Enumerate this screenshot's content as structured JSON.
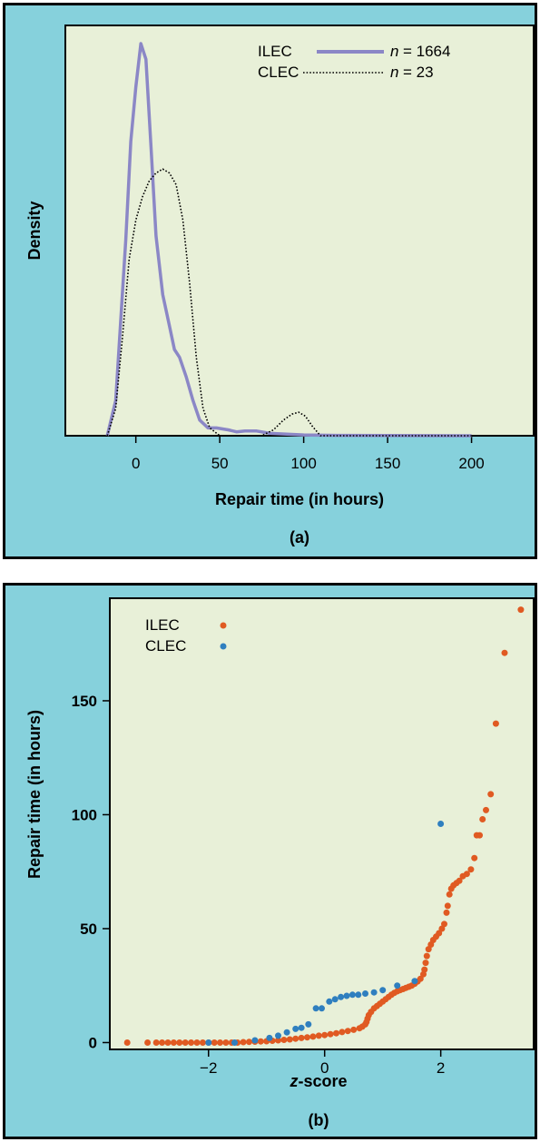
{
  "chart_data": [
    {
      "type": "line",
      "panel_label": "(a)",
      "xlabel": "Repair time (in hours)",
      "ylabel": "Density",
      "xlim": [
        -42,
        237
      ],
      "ylim": [
        0,
        1.0
      ],
      "x_ticks": [
        "0",
        "50",
        "100",
        "150",
        "200"
      ],
      "x_tick_values": [
        0,
        50,
        100,
        150,
        200
      ],
      "y_ticks_shown": false,
      "legend": {
        "position": "top-right",
        "entries": [
          {
            "name": "ILEC",
            "style": "solid",
            "color": "#8b87c6",
            "n_label": "n",
            "n_value": "= 1664"
          },
          {
            "name": "CLEC",
            "style": "dotted",
            "color": "#000000",
            "n_label": "n",
            "n_value": "= 23"
          }
        ]
      },
      "series": [
        {
          "name": "ILEC",
          "style": "solid",
          "color": "#8b87c6",
          "x": [
            -17,
            -12,
            -6,
            -3,
            0,
            3,
            6,
            9,
            12,
            16,
            20,
            23,
            26,
            30,
            34,
            38,
            43,
            48,
            55,
            60,
            65,
            72,
            80,
            90,
            100,
            120,
            150,
            200
          ],
          "y": [
            0.0,
            0.09,
            0.5,
            0.75,
            0.89,
            1.0,
            0.96,
            0.74,
            0.51,
            0.36,
            0.28,
            0.22,
            0.2,
            0.15,
            0.09,
            0.04,
            0.02,
            0.02,
            0.015,
            0.01,
            0.012,
            0.012,
            0.006,
            0.004,
            0.002,
            0.001,
            0.0005,
            0.0
          ]
        },
        {
          "name": "CLEC",
          "style": "dotted",
          "color": "#000000",
          "x": [
            -17,
            -12,
            -8,
            -4,
            0,
            4,
            8,
            12,
            16,
            20,
            24,
            28,
            32,
            36,
            40,
            44,
            50,
            60,
            75,
            82,
            88,
            93,
            97,
            101,
            105,
            110,
            115,
            200
          ],
          "y": [
            0.0,
            0.07,
            0.25,
            0.45,
            0.55,
            0.61,
            0.65,
            0.67,
            0.68,
            0.67,
            0.64,
            0.55,
            0.39,
            0.2,
            0.07,
            0.02,
            0.0,
            0.0,
            0.0,
            0.015,
            0.04,
            0.055,
            0.06,
            0.05,
            0.025,
            0.0,
            0.0,
            0.0
          ]
        }
      ]
    },
    {
      "type": "scatter",
      "panel_label": "(b)",
      "xlabel_italic": "z",
      "xlabel_rest": "-score",
      "ylabel": "Repair time (in hours)",
      "xlim": [
        -3.7,
        3.6
      ],
      "ylim": [
        -3,
        195
      ],
      "x_ticks": [
        "−2",
        "0",
        "2"
      ],
      "x_tick_values": [
        -2,
        0,
        2
      ],
      "y_ticks": [
        "0",
        "50",
        "100",
        "150"
      ],
      "y_tick_values": [
        0,
        50,
        100,
        150
      ],
      "legend": {
        "position": "top-left",
        "entries": [
          {
            "name": "ILEC",
            "color": "#e05a22"
          },
          {
            "name": "CLEC",
            "color": "#2f7fbf"
          }
        ]
      },
      "series": [
        {
          "name": "ILEC",
          "color": "#e05a22",
          "values": [
            [
              -3.4,
              0
            ],
            [
              -3.05,
              0
            ],
            [
              -2.9,
              0
            ],
            [
              -2.8,
              0
            ],
            [
              -2.7,
              0
            ],
            [
              -2.6,
              0
            ],
            [
              -2.5,
              0
            ],
            [
              -2.4,
              0
            ],
            [
              -2.3,
              0
            ],
            [
              -2.2,
              0
            ],
            [
              -2.1,
              0
            ],
            [
              -2.0,
              0
            ],
            [
              -1.9,
              0
            ],
            [
              -1.8,
              0
            ],
            [
              -1.7,
              0
            ],
            [
              -1.6,
              0
            ],
            [
              -1.5,
              0
            ],
            [
              -1.4,
              0.2
            ],
            [
              -1.3,
              0.3
            ],
            [
              -1.2,
              0.4
            ],
            [
              -1.1,
              0.5
            ],
            [
              -1.0,
              0.6
            ],
            [
              -0.9,
              0.8
            ],
            [
              -0.8,
              1.0
            ],
            [
              -0.7,
              1.2
            ],
            [
              -0.6,
              1.4
            ],
            [
              -0.5,
              1.7
            ],
            [
              -0.4,
              2.0
            ],
            [
              -0.3,
              2.3
            ],
            [
              -0.2,
              2.6
            ],
            [
              -0.1,
              3.0
            ],
            [
              0.0,
              3.3
            ],
            [
              0.1,
              3.7
            ],
            [
              0.2,
              4.1
            ],
            [
              0.3,
              4.6
            ],
            [
              0.4,
              5.1
            ],
            [
              0.5,
              5.6
            ],
            [
              0.6,
              6.3
            ],
            [
              0.65,
              7.0
            ],
            [
              0.7,
              8.0
            ],
            [
              0.72,
              9.0
            ],
            [
              0.74,
              10.5
            ],
            [
              0.76,
              12.0
            ],
            [
              0.8,
              13.5
            ],
            [
              0.85,
              15.0
            ],
            [
              0.9,
              16.0
            ],
            [
              0.95,
              17.0
            ],
            [
              1.0,
              18.0
            ],
            [
              1.05,
              19.0
            ],
            [
              1.1,
              20.0
            ],
            [
              1.15,
              21.0
            ],
            [
              1.2,
              21.8
            ],
            [
              1.25,
              22.5
            ],
            [
              1.3,
              23.0
            ],
            [
              1.35,
              23.5
            ],
            [
              1.4,
              24.0
            ],
            [
              1.45,
              24.5
            ],
            [
              1.5,
              25.0
            ],
            [
              1.55,
              25.8
            ],
            [
              1.6,
              26.8
            ],
            [
              1.65,
              28.0
            ],
            [
              1.7,
              30.0
            ],
            [
              1.72,
              32.0
            ],
            [
              1.74,
              35.0
            ],
            [
              1.76,
              38.0
            ],
            [
              1.79,
              41.0
            ],
            [
              1.83,
              43.0
            ],
            [
              1.87,
              45.0
            ],
            [
              1.92,
              46.5
            ],
            [
              1.97,
              48.0
            ],
            [
              2.02,
              50.0
            ],
            [
              2.06,
              52.0
            ],
            [
              2.1,
              57.0
            ],
            [
              2.12,
              60.0
            ],
            [
              2.15,
              65.0
            ],
            [
              2.18,
              67.5
            ],
            [
              2.22,
              69.0
            ],
            [
              2.27,
              70.0
            ],
            [
              2.32,
              71.0
            ],
            [
              2.38,
              73.0
            ],
            [
              2.45,
              74.0
            ],
            [
              2.52,
              76.0
            ],
            [
              2.58,
              81.0
            ],
            [
              2.62,
              91.0
            ],
            [
              2.67,
              91.0
            ],
            [
              2.72,
              98.0
            ],
            [
              2.78,
              102.0
            ],
            [
              2.86,
              109.0
            ],
            [
              2.95,
              140.0
            ],
            [
              3.1,
              171.0
            ],
            [
              3.38,
              190.0
            ]
          ]
        },
        {
          "name": "CLEC",
          "color": "#2f7fbf",
          "values": [
            [
              -2.0,
              0
            ],
            [
              -1.55,
              0
            ],
            [
              -1.2,
              1
            ],
            [
              -0.95,
              2
            ],
            [
              -0.8,
              3
            ],
            [
              -0.65,
              4.5
            ],
            [
              -0.5,
              6
            ],
            [
              -0.4,
              6.5
            ],
            [
              -0.28,
              8
            ],
            [
              -0.15,
              15
            ],
            [
              -0.05,
              15
            ],
            [
              0.08,
              18
            ],
            [
              0.18,
              19
            ],
            [
              0.28,
              20
            ],
            [
              0.38,
              20.5
            ],
            [
              0.48,
              21
            ],
            [
              0.58,
              21
            ],
            [
              0.7,
              21.5
            ],
            [
              0.85,
              22
            ],
            [
              1.0,
              23
            ],
            [
              1.25,
              25
            ],
            [
              1.55,
              27
            ],
            [
              2.0,
              96
            ]
          ]
        }
      ]
    }
  ]
}
